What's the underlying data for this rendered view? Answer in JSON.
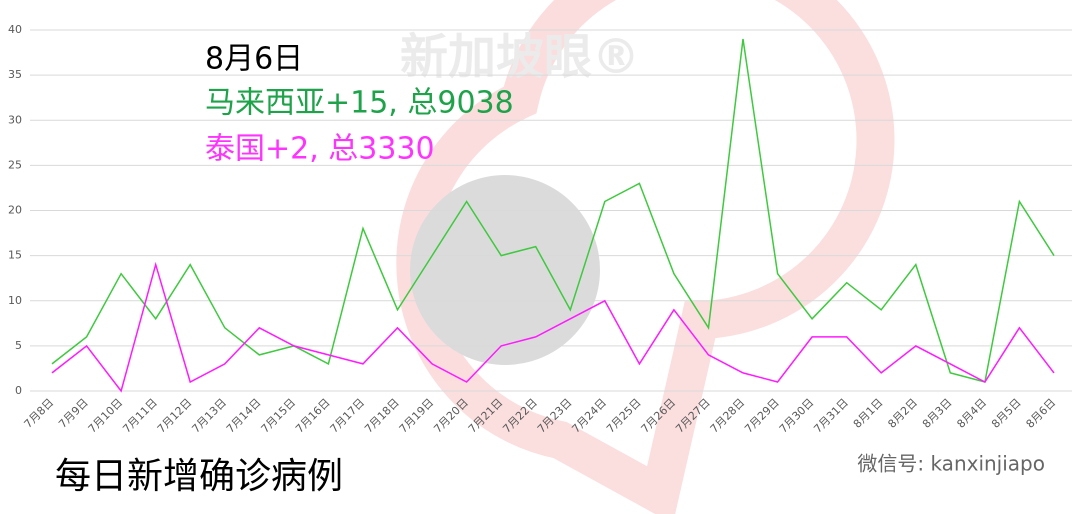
{
  "chart_data": {
    "type": "line",
    "annotations": [
      "8月6日",
      "马来西亚+15, 总9038",
      "泰国+2, 总3330"
    ],
    "annotation_colors": [
      "#000000",
      "#1ea34a",
      "#ff33ff"
    ],
    "footer": "每日新增确诊病例",
    "watermark": "新加坡眼®",
    "source": "微信号: kanxinjiapo",
    "categories": [
      "7月8日",
      "7月9日",
      "7月10日",
      "7月11日",
      "7月12日",
      "7月13日",
      "7月14日",
      "7月15日",
      "7月16日",
      "7月17日",
      "7月18日",
      "7月19日",
      "7月20日",
      "7月21日",
      "7月22日",
      "7月23日",
      "7月24日",
      "7月25日",
      "7月26日",
      "7月27日",
      "7月28日",
      "7月29日",
      "7月30日",
      "7月31日",
      "8月1日",
      "8月2日",
      "8月3日",
      "8月4日",
      "8月5日",
      "8月6日"
    ],
    "series": [
      {
        "color": "#3ec93e",
        "values": [
          3,
          6,
          13,
          8,
          14,
          7,
          4,
          5,
          3,
          18,
          9,
          15,
          21,
          15,
          16,
          9,
          21,
          23,
          13,
          7,
          39,
          13,
          8,
          12,
          9,
          14,
          2,
          1,
          21,
          15
        ]
      },
      {
        "color": "#ff1aff",
        "values": [
          2,
          5,
          0,
          14,
          1,
          3,
          7,
          5,
          4,
          3,
          7,
          3,
          1,
          5,
          6,
          8,
          10,
          3,
          9,
          4,
          2,
          1,
          6,
          6,
          2,
          5,
          3,
          1,
          7,
          2
        ]
      }
    ],
    "ylim": [
      0,
      40
    ],
    "yticks": [
      0,
      5,
      10,
      15,
      20,
      25,
      30,
      35,
      40
    ],
    "grid": true
  }
}
